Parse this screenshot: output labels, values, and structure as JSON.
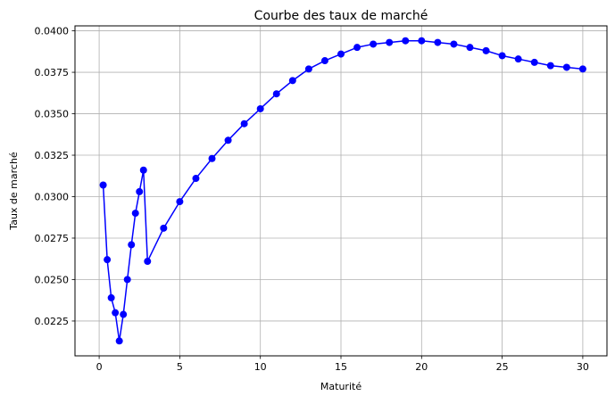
{
  "chart_data": {
    "type": "line",
    "title": "Courbe des taux de marché",
    "xlabel": "Maturité",
    "ylabel": "Taux de marché",
    "xlim": [
      -1.5,
      31.5
    ],
    "ylim": [
      0.0204,
      0.0403
    ],
    "xticks": [
      0,
      5,
      10,
      15,
      20,
      25,
      30
    ],
    "xtick_labels": [
      "0",
      "5",
      "10",
      "15",
      "20",
      "25",
      "30"
    ],
    "yticks": [
      0.0225,
      0.025,
      0.0275,
      0.03,
      0.0325,
      0.035,
      0.0375,
      0.04
    ],
    "ytick_labels": [
      "0.0225",
      "0.0250",
      "0.0275",
      "0.0300",
      "0.0325",
      "0.0350",
      "0.0375",
      "0.0400"
    ],
    "grid": true,
    "series": [
      {
        "color": "#0000ff",
        "marker": "circle",
        "points": [
          [
            0.25,
            0.0307
          ],
          [
            0.5,
            0.0262
          ],
          [
            0.75,
            0.0239
          ],
          [
            1.0,
            0.023
          ],
          [
            1.25,
            0.0213
          ],
          [
            1.5,
            0.0229
          ],
          [
            1.75,
            0.025
          ],
          [
            2.0,
            0.0271
          ],
          [
            2.25,
            0.029
          ],
          [
            2.5,
            0.0303
          ],
          [
            2.75,
            0.0316
          ],
          [
            3,
            0.0261
          ],
          [
            4,
            0.0281
          ],
          [
            5,
            0.0297
          ],
          [
            6,
            0.0311
          ],
          [
            7,
            0.0323
          ],
          [
            8,
            0.0334
          ],
          [
            9,
            0.0344
          ],
          [
            10,
            0.0353
          ],
          [
            11,
            0.0362
          ],
          [
            12,
            0.037
          ],
          [
            13,
            0.0377
          ],
          [
            14,
            0.0382
          ],
          [
            15,
            0.0386
          ],
          [
            16,
            0.039
          ],
          [
            17,
            0.0392
          ],
          [
            18,
            0.0393
          ],
          [
            19,
            0.0394
          ],
          [
            20,
            0.0394
          ],
          [
            21,
            0.0393
          ],
          [
            22,
            0.0392
          ],
          [
            23,
            0.039
          ],
          [
            24,
            0.0388
          ],
          [
            25,
            0.0385
          ],
          [
            26,
            0.0383
          ],
          [
            27,
            0.0381
          ],
          [
            28,
            0.0379
          ],
          [
            29,
            0.0378
          ],
          [
            30,
            0.0377
          ]
        ]
      }
    ]
  }
}
